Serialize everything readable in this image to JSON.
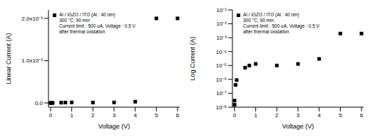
{
  "chart_data": [
    {
      "type": "scatter",
      "x_label": "Voltage (V)",
      "y_label": "Linear Current (A)",
      "x": [
        0,
        0,
        0.05,
        0.1,
        0.5,
        0.7,
        1,
        2,
        3,
        4,
        5,
        6
      ],
      "series": [
        {
          "name": "Al / IGZO / ITO (Al : 40 nm)",
          "color": "#000000",
          "marker": "square",
          "values": [
            1.5e-08,
            3e-08,
            4e-07,
            9e-07,
            7e-06,
            1e-05,
            1.3e-05,
            1e-05,
            1.3e-05,
            3e-05,
            0.002,
            0.002
          ]
        }
      ],
      "annotations": [
        "300 °C, 90 min",
        "Current limit : 500 uA, Voltage : 0.5 V",
        "after thermal oxidation"
      ],
      "legend": "upper left",
      "xlim": [
        -0.1,
        6.1
      ],
      "xticks": [
        0,
        1,
        2,
        3,
        4,
        5,
        6
      ],
      "ylim": [
        -0.0001,
        0.0022
      ],
      "yticks": [
        {
          "value": 0,
          "label": "0.0"
        },
        {
          "value": 0.001,
          "label": "1.0x10⁻³"
        },
        {
          "value": 0.002,
          "label": "2.0x10⁻³"
        }
      ],
      "grid": false
    },
    {
      "type": "scatter",
      "x_label": "Voltage (V)",
      "y_label": "Log Current (A)",
      "log": "y",
      "x": [
        0,
        0,
        0.05,
        0.1,
        0.5,
        0.7,
        1,
        2,
        3,
        4,
        5,
        6
      ],
      "series": [
        {
          "name": "Al / IGZO / ITO (Al : 40 nm)",
          "color": "#000000",
          "marker": "square",
          "values": [
            1.5e-08,
            3e-08,
            4e-07,
            9e-07,
            7e-06,
            1e-05,
            1.3e-05,
            1e-05,
            1.3e-05,
            3e-05,
            0.002,
            0.002
          ]
        }
      ],
      "annotations": [
        "300 °C, 90 min",
        "Current limit : 500 uA, Voltage : 0.5 V",
        "after thermal oxidation"
      ],
      "legend": "upper left",
      "xlim": [
        -0.1,
        6.1
      ],
      "xticks": [
        0,
        1,
        2,
        3,
        4,
        5,
        6
      ],
      "ylim": [
        1e-08,
        0.1
      ],
      "yticks": [
        {
          "value": 1e-08,
          "label": "10⁻⁸"
        },
        {
          "value": 1e-07,
          "label": "10⁻⁷"
        },
        {
          "value": 1e-06,
          "label": "10⁻⁶"
        },
        {
          "value": 1e-05,
          "label": "10⁻⁵"
        },
        {
          "value": 0.0001,
          "label": "10⁻⁴"
        },
        {
          "value": 0.001,
          "label": "10⁻³"
        },
        {
          "value": 0.01,
          "label": "10⁻²"
        },
        {
          "value": 0.1,
          "label": "10⁻¹"
        }
      ],
      "grid": false
    }
  ]
}
